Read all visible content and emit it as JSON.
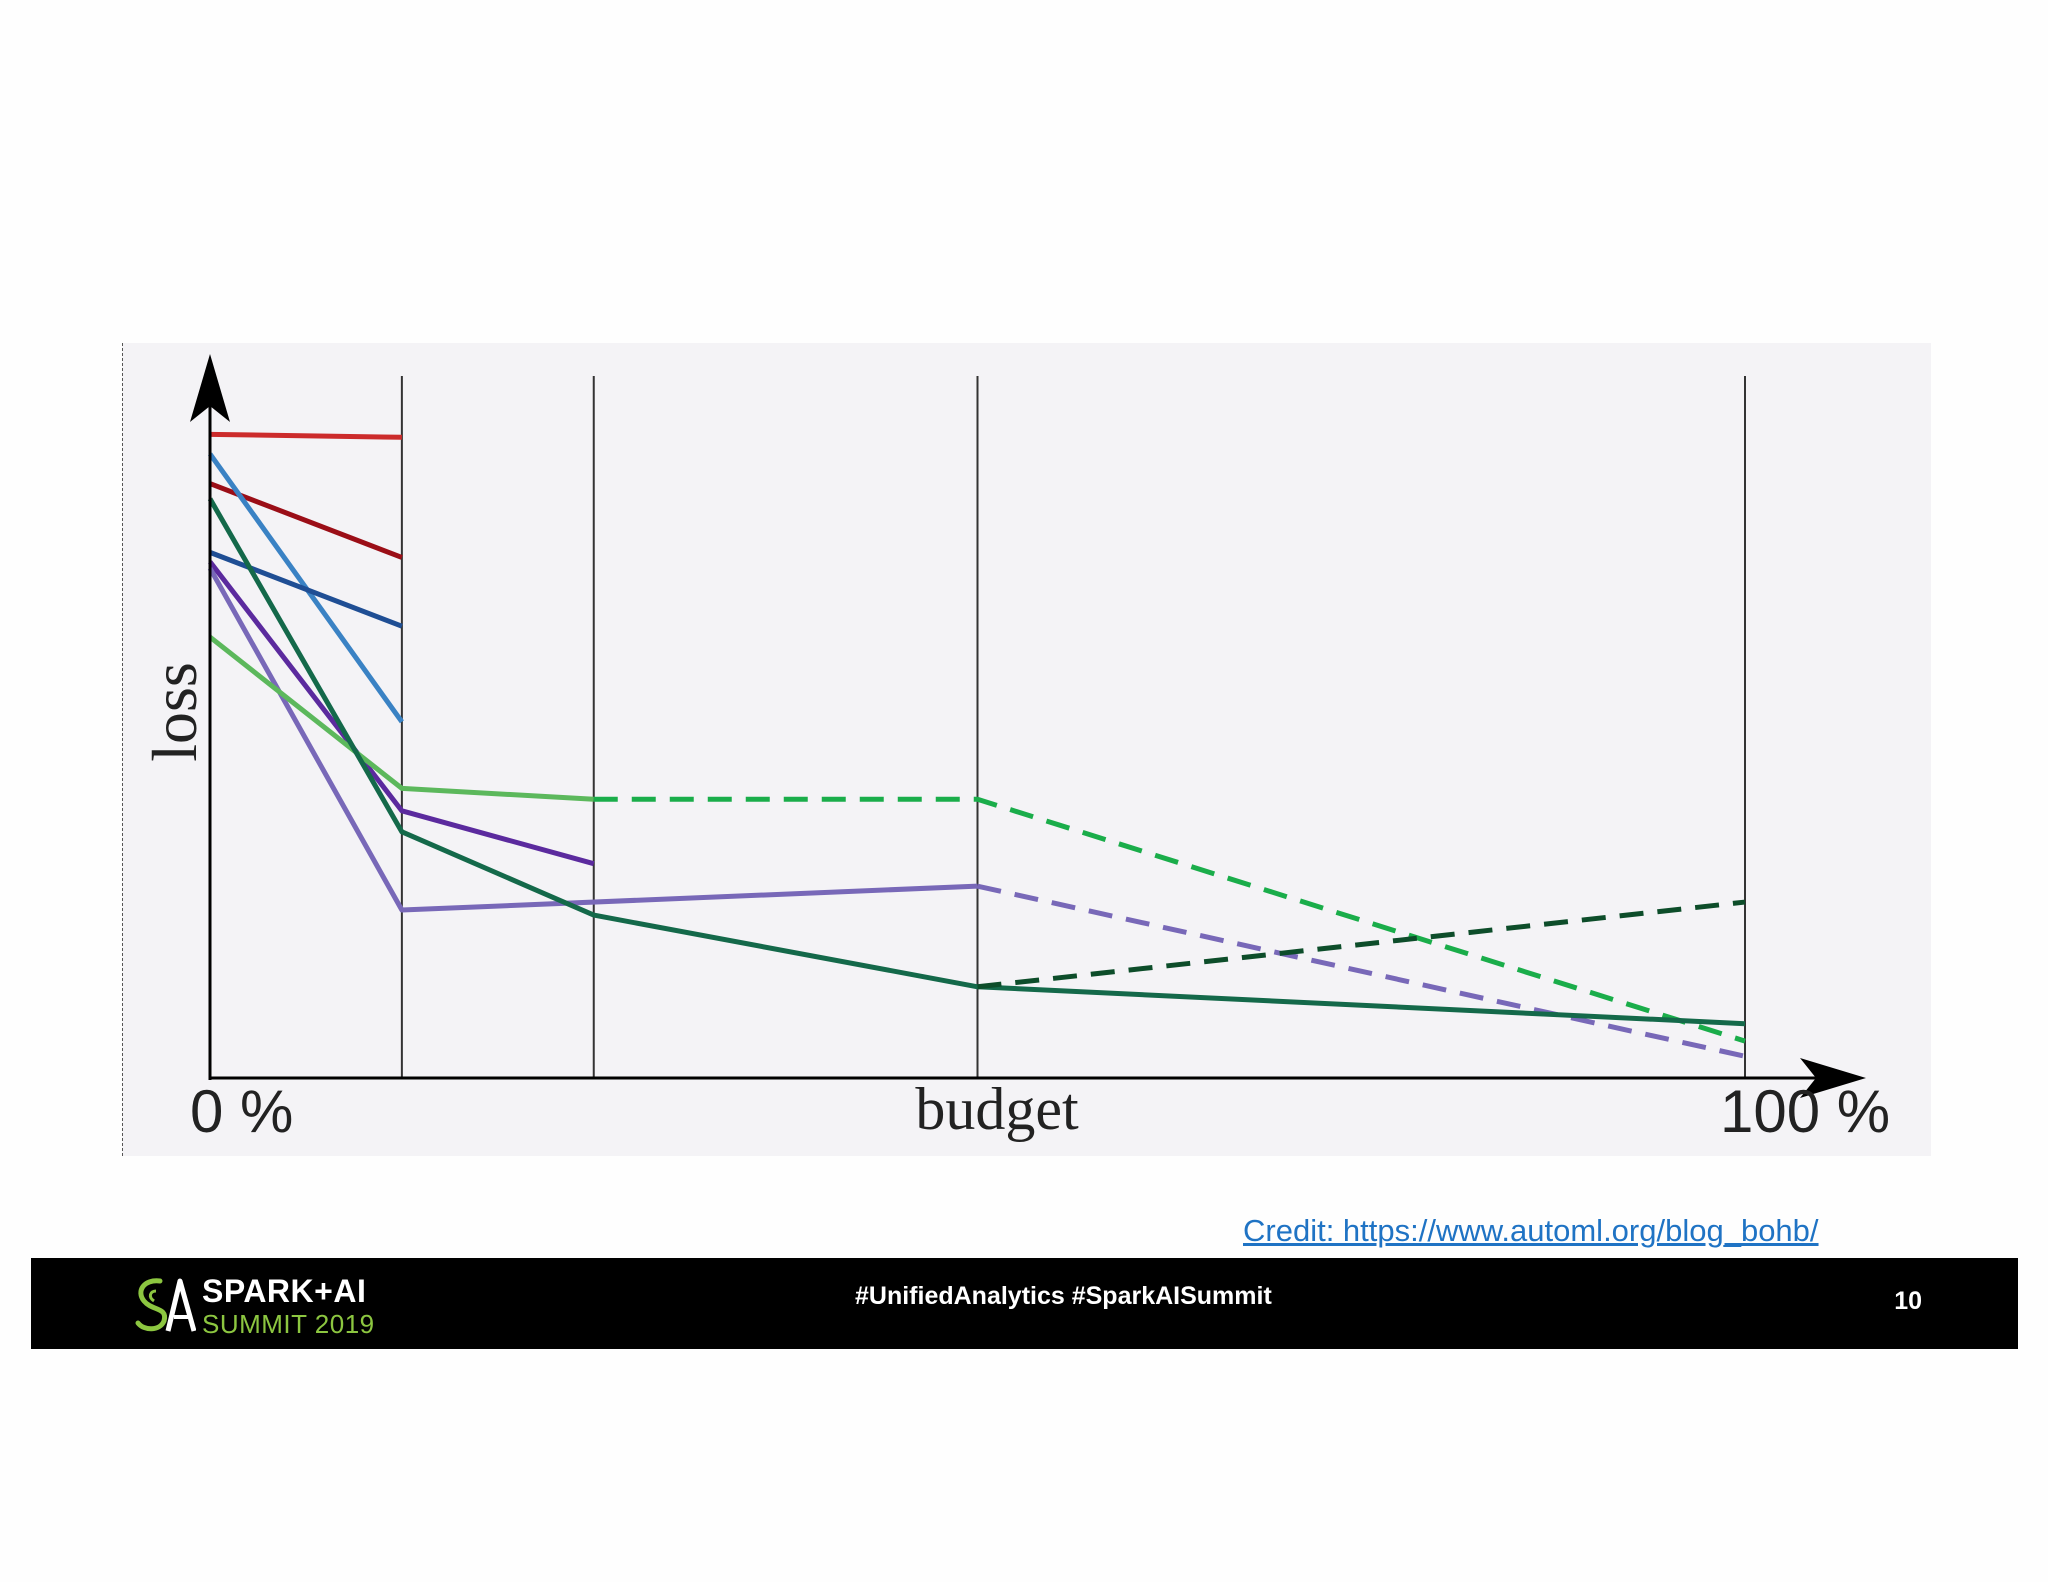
{
  "chart_data": {
    "type": "line",
    "ylabel": "loss",
    "xlabel": "budget",
    "x_tick_labels": [
      "0 %",
      "100 %"
    ],
    "xlim": [
      0,
      100
    ],
    "ylim": [
      0,
      100
    ],
    "budget_levels": [
      12.5,
      25,
      50,
      100
    ],
    "grid": false,
    "series": [
      {
        "color": "#cc2b2b",
        "style": "solid",
        "points": [
          [
            0,
            88.9
          ],
          [
            12.5,
            88.5
          ]
        ]
      },
      {
        "color": "#9b0e17",
        "style": "solid",
        "points": [
          [
            0,
            82.1
          ],
          [
            12.5,
            71.9
          ]
        ]
      },
      {
        "color": "#3a82c4",
        "style": "solid",
        "points": [
          [
            0,
            86.2
          ],
          [
            12.5,
            49.2
          ]
        ]
      },
      {
        "color": "#1f4e94",
        "style": "solid",
        "points": [
          [
            0,
            72.6
          ],
          [
            12.5,
            62.4
          ]
        ]
      },
      {
        "color": "#5b2a9e",
        "style": "solid",
        "points": [
          [
            0,
            71.3
          ],
          [
            12.5,
            36.9
          ],
          [
            25,
            29.6
          ]
        ]
      },
      {
        "color": "#7868b8",
        "style": "solid",
        "points": [
          [
            0,
            70.4
          ],
          [
            12.5,
            23.2
          ],
          [
            50,
            26.5
          ]
        ]
      },
      {
        "color": "#7868b8",
        "style": "dashed",
        "points": [
          [
            50,
            26.5
          ],
          [
            100,
            3.0
          ]
        ]
      },
      {
        "color": "#5cb85c",
        "style": "solid",
        "points": [
          [
            0,
            60.9
          ],
          [
            12.5,
            40.0
          ],
          [
            25,
            38.5
          ]
        ]
      },
      {
        "color": "#1aad4a",
        "style": "dashed",
        "points": [
          [
            25,
            38.5
          ],
          [
            50,
            38.5
          ],
          [
            100,
            5.1
          ]
        ]
      },
      {
        "color": "#14694a",
        "style": "solid",
        "points": [
          [
            0,
            80.0
          ],
          [
            12.5,
            34.0
          ],
          [
            25,
            22.5
          ],
          [
            50,
            12.6
          ],
          [
            100,
            7.5
          ]
        ]
      },
      {
        "color": "#0d4d2a",
        "style": "dashed",
        "points": [
          [
            50,
            12.6
          ],
          [
            100,
            24.3
          ]
        ]
      }
    ]
  },
  "colors": {
    "axis": "#000000",
    "budget_line": "#333333",
    "footer_bg": "#000000",
    "logo_green": "#8cc640",
    "link": "#1f73c4"
  },
  "credit": "Credit: https://www.automl.org/blog_bohb/",
  "footer": {
    "logo_line1": "SPARK+AI",
    "logo_line2": "SUMMIT 2019",
    "hashtags": "#UnifiedAnalytics #SparkAISummit",
    "page_number": "10"
  }
}
